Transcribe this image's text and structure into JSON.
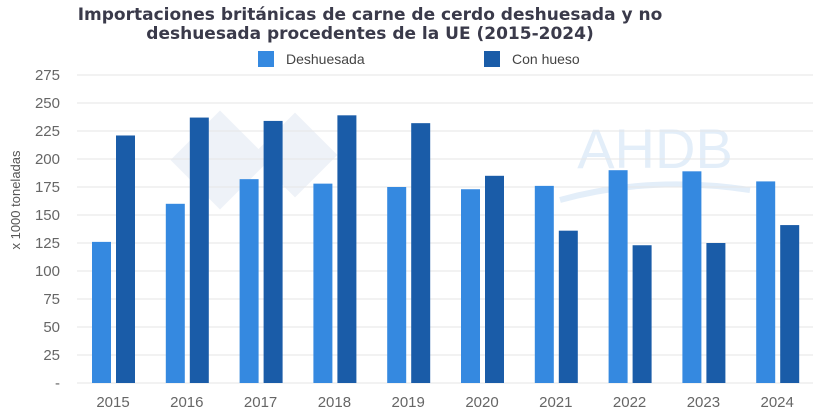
{
  "chart_data": {
    "type": "bar",
    "title": "Importaciones británicas de carne de cerdo deshuesada y no deshuesada procedentes de la UE (2015-2024)",
    "title_lines": [
      "Importaciones británicas de carne de cerdo deshuesada y no",
      "deshuesada procedentes de la UE (2015-2024)"
    ],
    "ylabel": "x 1000 toneladas",
    "xlabel": "",
    "ylim": [
      0,
      275
    ],
    "yticks": [
      0,
      25,
      50,
      75,
      100,
      125,
      150,
      175,
      200,
      225,
      250,
      275
    ],
    "ytick_labels": [
      "-",
      "25",
      "50",
      "75",
      "100",
      "125",
      "150",
      "175",
      "200",
      "225",
      "250",
      "275"
    ],
    "grid": true,
    "legend_position": "top",
    "categories": [
      "2015",
      "2016",
      "2017",
      "2018",
      "2019",
      "2020",
      "2021",
      "2022",
      "2023",
      "2024"
    ],
    "series": [
      {
        "name": "Deshuesada",
        "color": "#3589e0",
        "values": [
          126,
          160,
          182,
          178,
          175,
          173,
          176,
          190,
          189,
          180
        ]
      },
      {
        "name": "Con hueso",
        "color": "#1a5ca8",
        "values": [
          221,
          237,
          234,
          239,
          232,
          185,
          136,
          123,
          125,
          141
        ]
      }
    ]
  },
  "watermark": "AHDB"
}
